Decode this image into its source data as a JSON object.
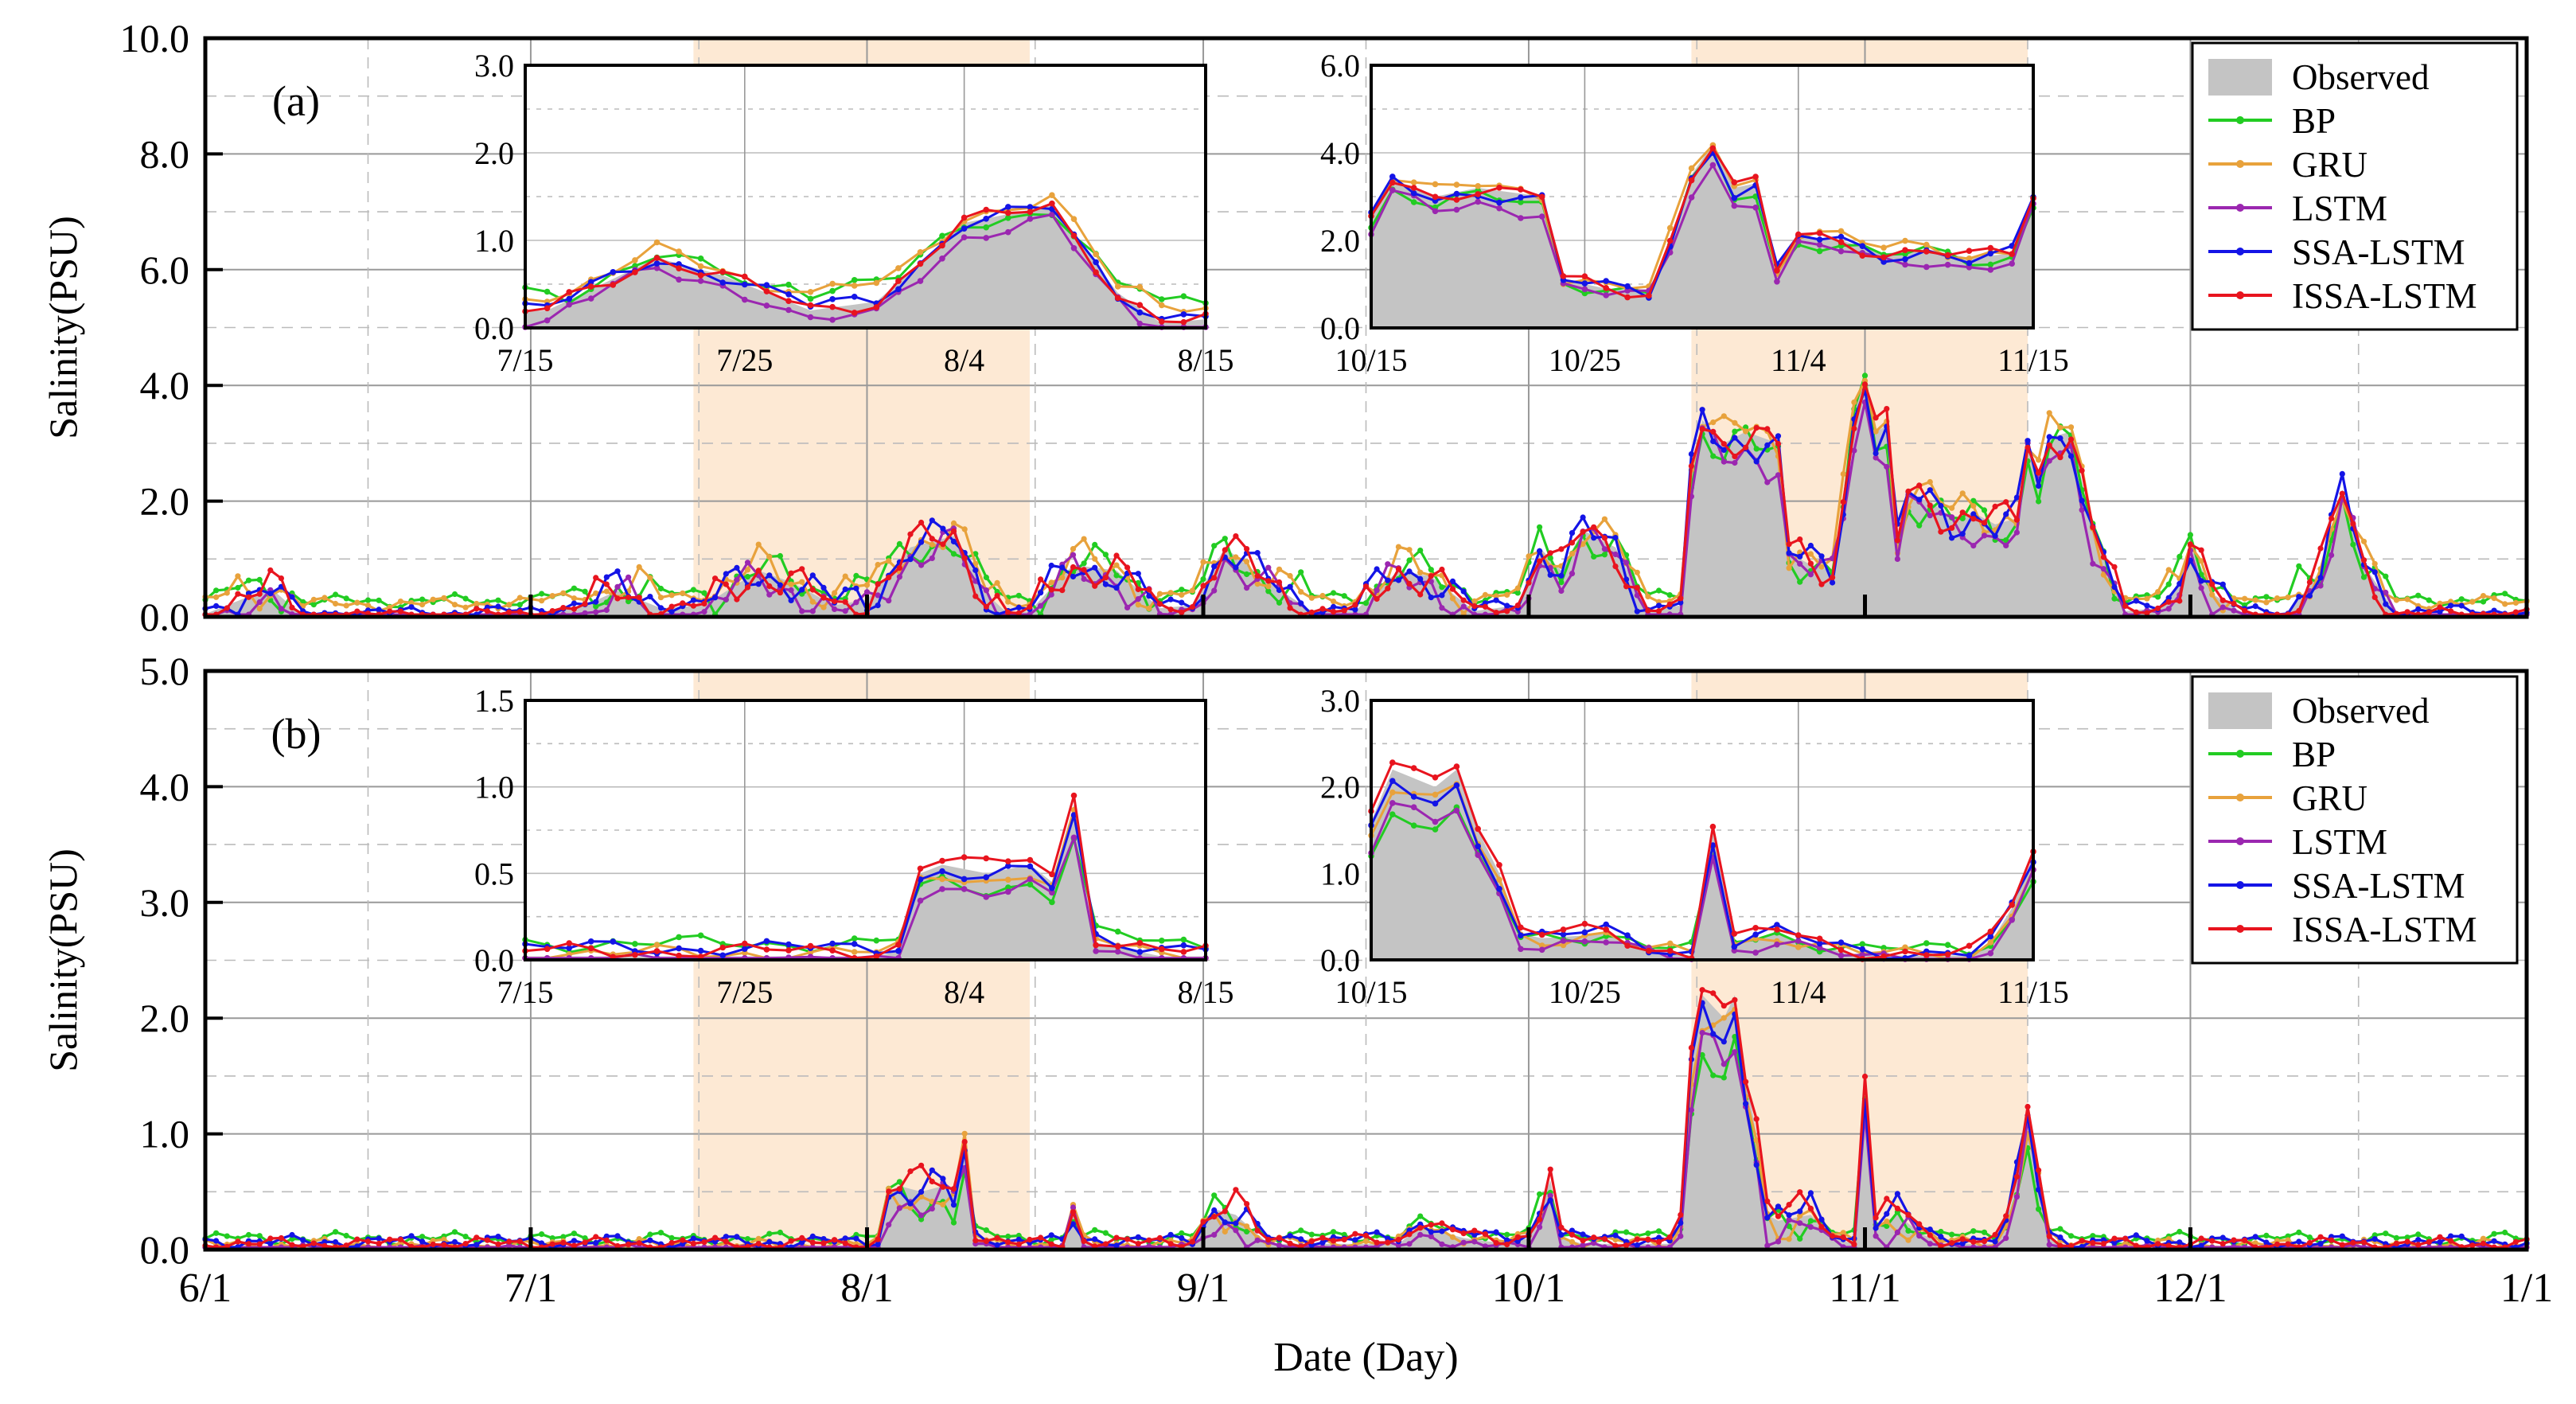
{
  "colors": {
    "observed": "#c4c4c4",
    "BP": "#22cc22",
    "GRU": "#e8a23c",
    "LSTM": "#9b27b0",
    "SSA-LSTM": "#1414e6",
    "ISSA-LSTM": "#e8141e",
    "highlight": "#fde9d4",
    "grid": "#999999",
    "frame": "#000000"
  },
  "chart_data": [
    {
      "type": "line",
      "panel_label": "(a)",
      "ylabel": "Salinity(PSU)",
      "xlabel": "Date (Day)",
      "ylim": [
        0,
        10
      ],
      "yticks": [
        "0.0",
        "2.0",
        "4.0",
        "6.0",
        "8.0",
        "10.0"
      ],
      "x_ticks": [
        "6/1",
        "7/1",
        "8/1",
        "9/1",
        "10/1",
        "11/1",
        "12/1",
        "1/1"
      ],
      "x_tick_days": [
        0,
        30,
        61,
        92,
        122,
        153,
        183,
        214
      ],
      "highlight_ranges_days": [
        [
          45,
          76
        ],
        [
          137,
          168
        ]
      ],
      "legend": [
        "Observed",
        "BP",
        "GRU",
        "LSTM",
        "SSA-LSTM",
        "ISSA-LSTM"
      ],
      "observed_keys": [
        [
          0,
          0.05
        ],
        [
          6,
          0.5
        ],
        [
          9,
          0.02
        ],
        [
          20,
          0.02
        ],
        [
          30,
          0.05
        ],
        [
          35,
          0.2
        ],
        [
          38,
          0.45
        ],
        [
          42,
          0.15
        ],
        [
          46,
          0.2
        ],
        [
          51,
          0.8
        ],
        [
          54,
          0.6
        ],
        [
          58,
          0.2
        ],
        [
          61,
          0.3
        ],
        [
          65,
          1.2
        ],
        [
          69,
          1.4
        ],
        [
          72,
          0.4
        ],
        [
          74,
          0.05
        ],
        [
          76,
          0.1
        ],
        [
          80,
          0.9
        ],
        [
          84,
          0.8
        ],
        [
          88,
          0.15
        ],
        [
          91,
          0.2
        ],
        [
          94,
          1.2
        ],
        [
          98,
          0.6
        ],
        [
          102,
          0.1
        ],
        [
          106,
          0.1
        ],
        [
          110,
          0.8
        ],
        [
          113,
          0.7
        ],
        [
          117,
          0.1
        ],
        [
          121,
          0.2
        ],
        [
          123,
          1.2
        ],
        [
          125,
          0.8
        ],
        [
          127,
          1.5
        ],
        [
          130,
          1.2
        ],
        [
          133,
          0.1
        ],
        [
          136,
          0.2
        ],
        [
          137,
          2.5
        ],
        [
          138,
          3.4
        ],
        [
          140,
          3.0
        ],
        [
          142,
          3.2
        ],
        [
          145,
          3.0
        ],
        [
          146,
          1.1
        ],
        [
          148,
          0.9
        ],
        [
          150,
          0.8
        ],
        [
          151,
          2.0
        ],
        [
          152,
          3.5
        ],
        [
          153,
          4.2
        ],
        [
          154,
          3.2
        ],
        [
          155,
          3.3
        ],
        [
          156,
          1.3
        ],
        [
          157,
          2.1
        ],
        [
          159,
          2.0
        ],
        [
          161,
          1.7
        ],
        [
          163,
          1.8
        ],
        [
          165,
          1.6
        ],
        [
          167,
          1.7
        ],
        [
          168,
          3.0
        ],
        [
          169,
          2.4
        ],
        [
          170,
          3.1
        ],
        [
          172,
          3.2
        ],
        [
          174,
          1.5
        ],
        [
          177,
          0.1
        ],
        [
          180,
          0.15
        ],
        [
          182,
          0.6
        ],
        [
          183,
          1.3
        ],
        [
          185,
          0.4
        ],
        [
          188,
          0.05
        ],
        [
          192,
          0.05
        ],
        [
          195,
          0.8
        ],
        [
          197,
          2.2
        ],
        [
          199,
          0.9
        ],
        [
          202,
          0.05
        ],
        [
          214,
          0.05
        ]
      ],
      "bias": {
        "BP": 0.25,
        "GRU": 0.2,
        "LSTM": -0.12,
        "SSA-LSTM": 0.05,
        "ISSA-LSTM": 0.0
      },
      "scale": {
        "BP": 0.9,
        "GRU": 1.0,
        "LSTM": 0.9,
        "SSA-LSTM": 0.97,
        "ISSA-LSTM": 1.0
      }
    },
    {
      "type": "line",
      "panel_label": "(b)",
      "ylabel": "Salinity(PSU)",
      "xlabel": "Date (Day)",
      "ylim": [
        0,
        5
      ],
      "yticks": [
        "0.0",
        "1.0",
        "2.0",
        "3.0",
        "4.0",
        "5.0"
      ],
      "x_ticks": [
        "6/1",
        "7/1",
        "8/1",
        "9/1",
        "10/1",
        "11/1",
        "12/1",
        "1/1"
      ],
      "x_tick_days": [
        0,
        30,
        61,
        92,
        122,
        153,
        183,
        214
      ],
      "highlight_ranges_days": [
        [
          45,
          76
        ],
        [
          137,
          168
        ]
      ],
      "legend": [
        "Observed",
        "BP",
        "GRU",
        "LSTM",
        "SSA-LSTM",
        "ISSA-LSTM"
      ],
      "observed_keys": [
        [
          0,
          0.02
        ],
        [
          61,
          0.02
        ],
        [
          62,
          0.05
        ],
        [
          63,
          0.5
        ],
        [
          64,
          0.55
        ],
        [
          66,
          0.5
        ],
        [
          68,
          0.55
        ],
        [
          69,
          0.45
        ],
        [
          70,
          0.9
        ],
        [
          71,
          0.1
        ],
        [
          74,
          0.02
        ],
        [
          79,
          0.02
        ],
        [
          80,
          0.3
        ],
        [
          81,
          0.05
        ],
        [
          86,
          0.02
        ],
        [
          91,
          0.05
        ],
        [
          93,
          0.35
        ],
        [
          95,
          0.3
        ],
        [
          98,
          0.05
        ],
        [
          110,
          0.05
        ],
        [
          112,
          0.2
        ],
        [
          116,
          0.1
        ],
        [
          120,
          0.05
        ],
        [
          122,
          0.1
        ],
        [
          124,
          0.6
        ],
        [
          125,
          0.1
        ],
        [
          127,
          0.05
        ],
        [
          135,
          0.05
        ],
        [
          136,
          0.2
        ],
        [
          137,
          1.6
        ],
        [
          138,
          2.2
        ],
        [
          140,
          2.0
        ],
        [
          141,
          2.2
        ],
        [
          142,
          1.5
        ],
        [
          143,
          1.0
        ],
        [
          144,
          0.3
        ],
        [
          145,
          0.25
        ],
        [
          148,
          0.3
        ],
        [
          150,
          0.1
        ],
        [
          152,
          0.05
        ],
        [
          153,
          1.5
        ],
        [
          154,
          0.2
        ],
        [
          156,
          0.3
        ],
        [
          158,
          0.15
        ],
        [
          160,
          0.05
        ],
        [
          165,
          0.05
        ],
        [
          166,
          0.2
        ],
        [
          167,
          0.6
        ],
        [
          168,
          1.2
        ],
        [
          169,
          0.6
        ],
        [
          170,
          0.1
        ],
        [
          172,
          0.02
        ],
        [
          214,
          0.02
        ]
      ],
      "bias": {
        "BP": 0.08,
        "GRU": 0.02,
        "LSTM": -0.03,
        "SSA-LSTM": 0.05,
        "ISSA-LSTM": 0.03
      },
      "scale": {
        "BP": 0.75,
        "GRU": 0.9,
        "LSTM": 0.8,
        "SSA-LSTM": 0.9,
        "ISSA-LSTM": 1.05
      }
    }
  ],
  "insets": [
    {
      "panel": 0,
      "side": "left",
      "day_range": [
        45,
        76
      ],
      "ylim": [
        0,
        3
      ],
      "yticks": [
        "0.0",
        "1.0",
        "2.0",
        "3.0"
      ],
      "x_tick_labels": [
        "7/15",
        "7/25",
        "8/4",
        "8/15"
      ],
      "x_tick_days": [
        45,
        55,
        65,
        76
      ]
    },
    {
      "panel": 0,
      "side": "right",
      "day_range": [
        137,
        168
      ],
      "ylim": [
        0,
        6
      ],
      "yticks": [
        "0.0",
        "2.0",
        "4.0",
        "6.0"
      ],
      "x_tick_labels": [
        "10/15",
        "10/25",
        "11/4",
        "11/15"
      ],
      "x_tick_days": [
        137,
        147,
        157,
        168
      ]
    },
    {
      "panel": 1,
      "side": "left",
      "day_range": [
        45,
        76
      ],
      "ylim": [
        0,
        1.5
      ],
      "yticks": [
        "0.0",
        "0.5",
        "1.0",
        "1.5"
      ],
      "x_tick_labels": [
        "7/15",
        "7/25",
        "8/4",
        "8/15"
      ],
      "x_tick_days": [
        45,
        55,
        65,
        76
      ]
    },
    {
      "panel": 1,
      "side": "right",
      "day_range": [
        137,
        168
      ],
      "ylim": [
        0,
        3
      ],
      "yticks": [
        "0.0",
        "1.0",
        "2.0",
        "3.0"
      ],
      "x_tick_labels": [
        "10/15",
        "10/25",
        "11/4",
        "11/15"
      ],
      "x_tick_days": [
        137,
        147,
        157,
        168
      ]
    }
  ]
}
